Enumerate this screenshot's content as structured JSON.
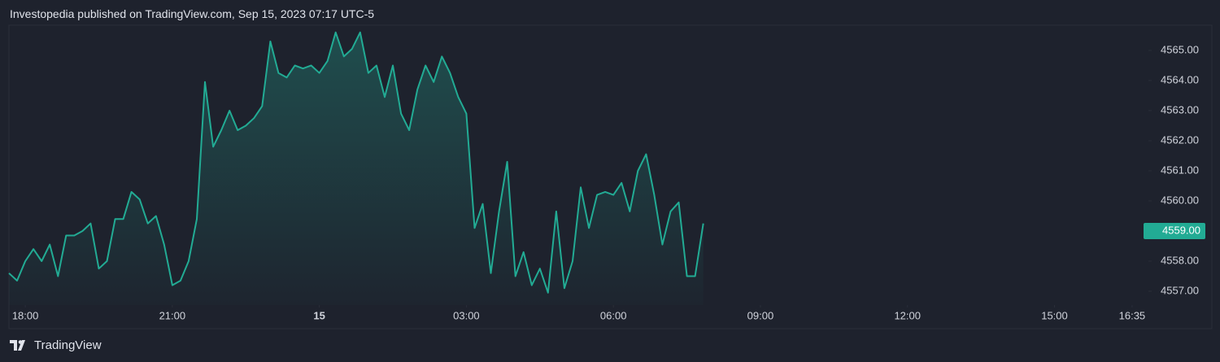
{
  "header": {
    "title": "Investopedia published on TradingView.com, Sep 15, 2023 07:17 UTC-5"
  },
  "footer": {
    "brand": "TradingView"
  },
  "chart_data": {
    "type": "area",
    "color": "#22ab94",
    "x": [
      "17:40",
      "17:50",
      "18:00",
      "18:10",
      "18:20",
      "18:30",
      "18:40",
      "18:50",
      "19:00",
      "19:10",
      "19:20",
      "19:30",
      "19:40",
      "19:50",
      "20:00",
      "20:10",
      "20:20",
      "20:30",
      "20:40",
      "20:50",
      "21:00",
      "21:10",
      "21:20",
      "21:30",
      "21:40",
      "21:50",
      "22:00",
      "22:10",
      "22:20",
      "22:30",
      "22:40",
      "22:50",
      "23:00",
      "23:10",
      "23:20",
      "23:30",
      "23:40",
      "23:50",
      "00:00",
      "00:10",
      "00:20",
      "00:30",
      "00:40",
      "00:50",
      "01:00",
      "01:10",
      "01:20",
      "01:30",
      "01:40",
      "01:50",
      "02:00",
      "02:10",
      "02:20",
      "02:30",
      "02:40",
      "02:50",
      "03:00",
      "03:10",
      "03:20",
      "03:30",
      "03:40",
      "03:50",
      "04:00",
      "04:10",
      "04:20",
      "04:30",
      "04:40",
      "04:50",
      "05:00",
      "05:10",
      "05:20",
      "05:30",
      "05:40",
      "05:50",
      "06:00",
      "06:10",
      "06:20",
      "06:30",
      "06:40",
      "06:50",
      "07:00",
      "07:10",
      "07:20",
      "07:30",
      "07:40",
      "07:50"
    ],
    "values": [
      4557.6,
      4557.35,
      4558.0,
      4558.4,
      4558.0,
      4558.55,
      4557.5,
      4558.85,
      4558.85,
      4559.0,
      4559.25,
      4557.75,
      4558.0,
      4559.4,
      4559.4,
      4560.3,
      4560.05,
      4559.25,
      4559.5,
      4558.55,
      4557.2,
      4557.35,
      4558.0,
      4559.4,
      4563.95,
      4561.8,
      4562.35,
      4563.0,
      4562.35,
      4562.5,
      4562.75,
      4563.15,
      4565.3,
      4564.25,
      4564.1,
      4564.5,
      4564.4,
      4564.5,
      4564.25,
      4564.65,
      4565.6,
      4564.8,
      4565.05,
      4565.6,
      4564.25,
      4564.5,
      4563.45,
      4564.5,
      4562.9,
      4562.35,
      4563.7,
      4564.5,
      4563.95,
      4564.8,
      4564.25,
      4563.45,
      4562.9,
      4559.1,
      4559.9,
      4557.6,
      4559.65,
      4561.3,
      4557.5,
      4558.3,
      4557.2,
      4557.75,
      4556.95,
      4559.65,
      4557.1,
      4558.0,
      4560.45,
      4559.1,
      4560.2,
      4560.3,
      4560.2,
      4560.6,
      4559.65,
      4561.0,
      4561.55,
      4560.2,
      4558.55,
      4559.65,
      4559.95,
      4557.5,
      4557.5,
      4559.25
    ],
    "xlim": [
      "17:40",
      "16:55"
    ],
    "xticks": [
      {
        "value": "18:00",
        "label": "18:00"
      },
      {
        "value": "21:00",
        "label": "21:00"
      },
      {
        "value": "00:00",
        "label": "15"
      },
      {
        "value": "03:00",
        "label": "03:00"
      },
      {
        "value": "06:00",
        "label": "06:00"
      },
      {
        "value": "09:00",
        "label": "09:00"
      },
      {
        "value": "12:00",
        "label": "12:00"
      },
      {
        "value": "15:00",
        "label": "15:00"
      },
      {
        "value": "16:35",
        "label": "16:35"
      }
    ],
    "ylim": [
      4556.54,
      4565.81
    ],
    "yticks": [
      {
        "value": 4557,
        "label": "4557.00"
      },
      {
        "value": 4558,
        "label": "4558.00"
      },
      {
        "value": 4559,
        "label": "4559.00"
      },
      {
        "value": 4560,
        "label": "4560.00"
      },
      {
        "value": 4561,
        "label": "4561.00"
      },
      {
        "value": 4562,
        "label": "4562.00"
      },
      {
        "value": 4563,
        "label": "4563.00"
      },
      {
        "value": 4564,
        "label": "4564.00"
      },
      {
        "value": 4565,
        "label": "4565.00"
      }
    ],
    "last_price": {
      "value": 4559,
      "label": "4559.00"
    }
  }
}
